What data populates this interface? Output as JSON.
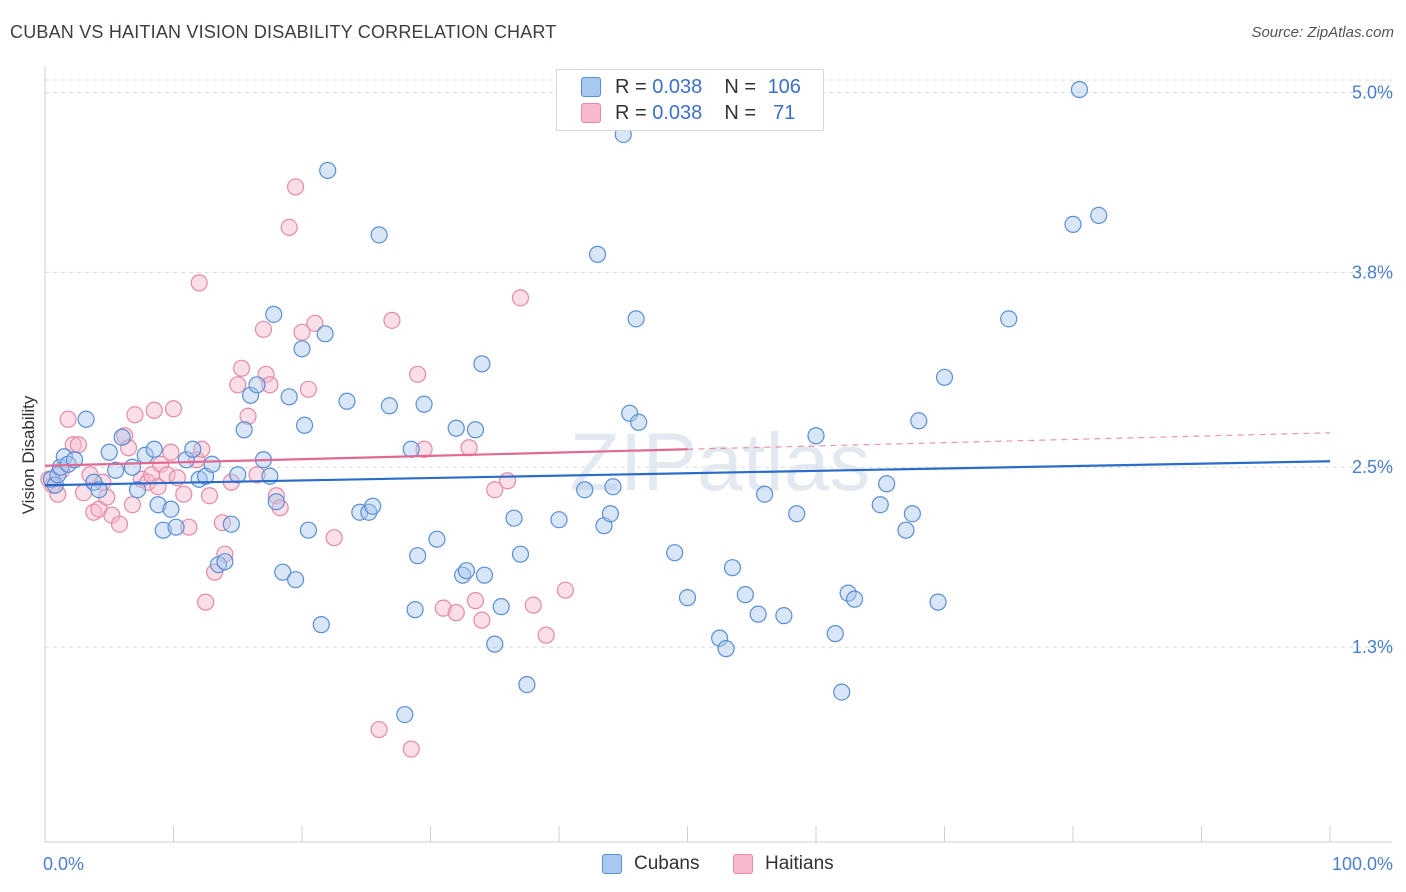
{
  "title": "CUBAN VS HAITIAN VISION DISABILITY CORRELATION CHART",
  "source": "Source: ZipAtlas.com",
  "watermark": "ZIPatlas",
  "legend": {
    "rows": [
      {
        "r_label": "R = ",
        "r_value": "0.038",
        "n_label": "N = ",
        "n_value": "106"
      },
      {
        "r_label": "R = ",
        "r_value": "0.038",
        "n_label": "N = ",
        "n_value": " 71"
      }
    ]
  },
  "colors": {
    "cubans_fill": "#a8c8f0",
    "cubans_stroke": "#5a8fd6",
    "cubans_line": "#2a6cc8",
    "haitians_fill": "#f7b8cb",
    "haitians_stroke": "#e58aa6",
    "haitians_line": "#e06a91",
    "tick_label": "#4a7fd0",
    "grid": "#d9d9d9"
  },
  "chart_data": {
    "type": "scatter",
    "title": "CUBAN VS HAITIAN VISION DISABILITY CORRELATION CHART",
    "xlabel": "",
    "ylabel": "Vision Disability",
    "xlim": [
      0,
      100
    ],
    "ylim": [
      0,
      5.15
    ],
    "x_tick_labels": [
      "0.0%",
      "100.0%"
    ],
    "y_ticks": [
      1.3,
      2.5,
      3.8,
      5.0
    ],
    "y_tick_labels": [
      "1.3%",
      "2.5%",
      "3.8%",
      "5.0%"
    ],
    "grid": "horizontal dashed",
    "legend_position": "bottom",
    "series": [
      {
        "name": "Cubans",
        "trend": {
          "x": [
            0,
            100
          ],
          "y": [
            2.38,
            2.54
          ]
        },
        "points": [
          [
            0.5,
            2.42
          ],
          [
            0.8,
            2.38
          ],
          [
            1.0,
            2.45
          ],
          [
            1.2,
            2.5
          ],
          [
            1.5,
            2.57
          ],
          [
            1.8,
            2.52
          ],
          [
            2.3,
            2.55
          ],
          [
            3.2,
            2.82
          ],
          [
            3.8,
            2.4
          ],
          [
            4.2,
            2.35
          ],
          [
            5.0,
            2.6
          ],
          [
            5.5,
            2.48
          ],
          [
            6.0,
            2.7
          ],
          [
            6.8,
            2.5
          ],
          [
            7.2,
            2.35
          ],
          [
            7.8,
            2.58
          ],
          [
            8.5,
            2.62
          ],
          [
            8.8,
            2.25
          ],
          [
            9.2,
            2.08
          ],
          [
            9.8,
            2.22
          ],
          [
            10.2,
            2.1
          ],
          [
            11.0,
            2.55
          ],
          [
            11.5,
            2.62
          ],
          [
            12.0,
            2.42
          ],
          [
            12.5,
            2.44
          ],
          [
            13.0,
            2.52
          ],
          [
            13.5,
            1.85
          ],
          [
            14.0,
            1.87
          ],
          [
            14.5,
            2.12
          ],
          [
            15.0,
            2.45
          ],
          [
            15.5,
            2.75
          ],
          [
            16.0,
            2.98
          ],
          [
            16.5,
            3.05
          ],
          [
            17.0,
            2.55
          ],
          [
            17.5,
            2.44
          ],
          [
            17.8,
            3.52
          ],
          [
            18.0,
            2.27
          ],
          [
            18.5,
            1.8
          ],
          [
            19.0,
            2.97
          ],
          [
            19.5,
            1.75
          ],
          [
            20.0,
            3.29
          ],
          [
            20.2,
            2.78
          ],
          [
            20.5,
            2.08
          ],
          [
            21.5,
            1.45
          ],
          [
            21.8,
            3.39
          ],
          [
            22.0,
            4.48
          ],
          [
            23.5,
            2.94
          ],
          [
            24.5,
            2.2
          ],
          [
            25.2,
            2.2
          ],
          [
            25.5,
            2.24
          ],
          [
            26.0,
            4.05
          ],
          [
            26.8,
            2.91
          ],
          [
            28.0,
            0.85
          ],
          [
            28.5,
            2.62
          ],
          [
            28.8,
            1.55
          ],
          [
            29.0,
            1.91
          ],
          [
            29.5,
            2.92
          ],
          [
            30.5,
            2.02
          ],
          [
            32.0,
            2.76
          ],
          [
            32.5,
            1.78
          ],
          [
            32.8,
            1.81
          ],
          [
            33.5,
            2.75
          ],
          [
            34.0,
            3.19
          ],
          [
            34.2,
            1.78
          ],
          [
            35.0,
            1.32
          ],
          [
            35.5,
            1.57
          ],
          [
            36.5,
            2.16
          ],
          [
            37.0,
            1.92
          ],
          [
            37.5,
            1.05
          ],
          [
            40.0,
            2.15
          ],
          [
            42.0,
            2.35
          ],
          [
            43.0,
            3.92
          ],
          [
            43.5,
            2.11
          ],
          [
            44.0,
            2.19
          ],
          [
            44.2,
            2.37
          ],
          [
            45.0,
            4.72
          ],
          [
            45.5,
            2.86
          ],
          [
            46.0,
            3.49
          ],
          [
            46.2,
            2.8
          ],
          [
            49.0,
            1.93
          ],
          [
            50.0,
            1.63
          ],
          [
            51.0,
            4.88
          ],
          [
            52.5,
            1.36
          ],
          [
            53.0,
            1.29
          ],
          [
            53.5,
            1.83
          ],
          [
            54.5,
            1.65
          ],
          [
            55.5,
            1.52
          ],
          [
            56.0,
            2.32
          ],
          [
            57.5,
            1.51
          ],
          [
            58.5,
            2.19
          ],
          [
            60.0,
            2.71
          ],
          [
            61.5,
            1.39
          ],
          [
            62.0,
            1.0
          ],
          [
            62.5,
            1.66
          ],
          [
            63.0,
            1.62
          ],
          [
            65.0,
            2.25
          ],
          [
            65.5,
            2.39
          ],
          [
            67.0,
            2.08
          ],
          [
            67.5,
            2.19
          ],
          [
            68.0,
            2.81
          ],
          [
            69.5,
            1.6
          ],
          [
            70.0,
            3.1
          ],
          [
            75.0,
            3.49
          ],
          [
            80.0,
            4.12
          ],
          [
            80.5,
            5.02
          ],
          [
            82.0,
            4.18
          ]
        ]
      },
      {
        "name": "Haitians",
        "trend": {
          "x": [
            0,
            50
          ],
          "y": [
            2.51,
            2.62
          ],
          "dashed_extension": {
            "x": [
              50,
              100
            ],
            "y": [
              2.62,
              2.73
            ]
          }
        },
        "points": [
          [
            0.3,
            2.42
          ],
          [
            0.6,
            2.38
          ],
          [
            1.0,
            2.32
          ],
          [
            1.3,
            2.48
          ],
          [
            1.8,
            2.82
          ],
          [
            2.2,
            2.65
          ],
          [
            2.6,
            2.65
          ],
          [
            3.0,
            2.33
          ],
          [
            3.5,
            2.45
          ],
          [
            3.8,
            2.2
          ],
          [
            4.2,
            2.22
          ],
          [
            4.5,
            2.4
          ],
          [
            4.8,
            2.3
          ],
          [
            5.2,
            2.18
          ],
          [
            5.8,
            2.12
          ],
          [
            6.2,
            2.71
          ],
          [
            6.5,
            2.63
          ],
          [
            6.8,
            2.25
          ],
          [
            7.0,
            2.85
          ],
          [
            7.5,
            2.42
          ],
          [
            8.0,
            2.4
          ],
          [
            8.3,
            2.45
          ],
          [
            8.5,
            2.88
          ],
          [
            8.8,
            2.37
          ],
          [
            9.0,
            2.52
          ],
          [
            9.5,
            2.45
          ],
          [
            9.8,
            2.6
          ],
          [
            10.0,
            2.89
          ],
          [
            10.3,
            2.43
          ],
          [
            10.8,
            2.32
          ],
          [
            11.2,
            2.1
          ],
          [
            11.8,
            2.55
          ],
          [
            12.0,
            3.73
          ],
          [
            12.2,
            2.62
          ],
          [
            12.5,
            1.6
          ],
          [
            12.8,
            2.31
          ],
          [
            13.2,
            1.8
          ],
          [
            13.8,
            2.13
          ],
          [
            14.0,
            1.92
          ],
          [
            14.5,
            2.4
          ],
          [
            15.0,
            3.05
          ],
          [
            15.3,
            3.16
          ],
          [
            15.8,
            2.84
          ],
          [
            16.5,
            2.45
          ],
          [
            17.0,
            3.42
          ],
          [
            17.2,
            3.12
          ],
          [
            17.5,
            3.05
          ],
          [
            18.0,
            2.31
          ],
          [
            18.3,
            2.23
          ],
          [
            19.0,
            4.1
          ],
          [
            19.5,
            4.37
          ],
          [
            20.0,
            3.4
          ],
          [
            20.5,
            3.02
          ],
          [
            21.0,
            3.46
          ],
          [
            22.5,
            2.03
          ],
          [
            26.0,
            0.75
          ],
          [
            27.0,
            3.48
          ],
          [
            28.5,
            0.62
          ],
          [
            29.0,
            3.12
          ],
          [
            29.5,
            2.62
          ],
          [
            31.0,
            1.56
          ],
          [
            32.0,
            1.53
          ],
          [
            33.0,
            2.63
          ],
          [
            33.5,
            1.61
          ],
          [
            34.0,
            1.48
          ],
          [
            35.0,
            2.35
          ],
          [
            36.0,
            2.41
          ],
          [
            37.0,
            3.63
          ],
          [
            38.0,
            1.58
          ],
          [
            39.0,
            1.38
          ],
          [
            40.5,
            1.68
          ]
        ]
      }
    ]
  }
}
